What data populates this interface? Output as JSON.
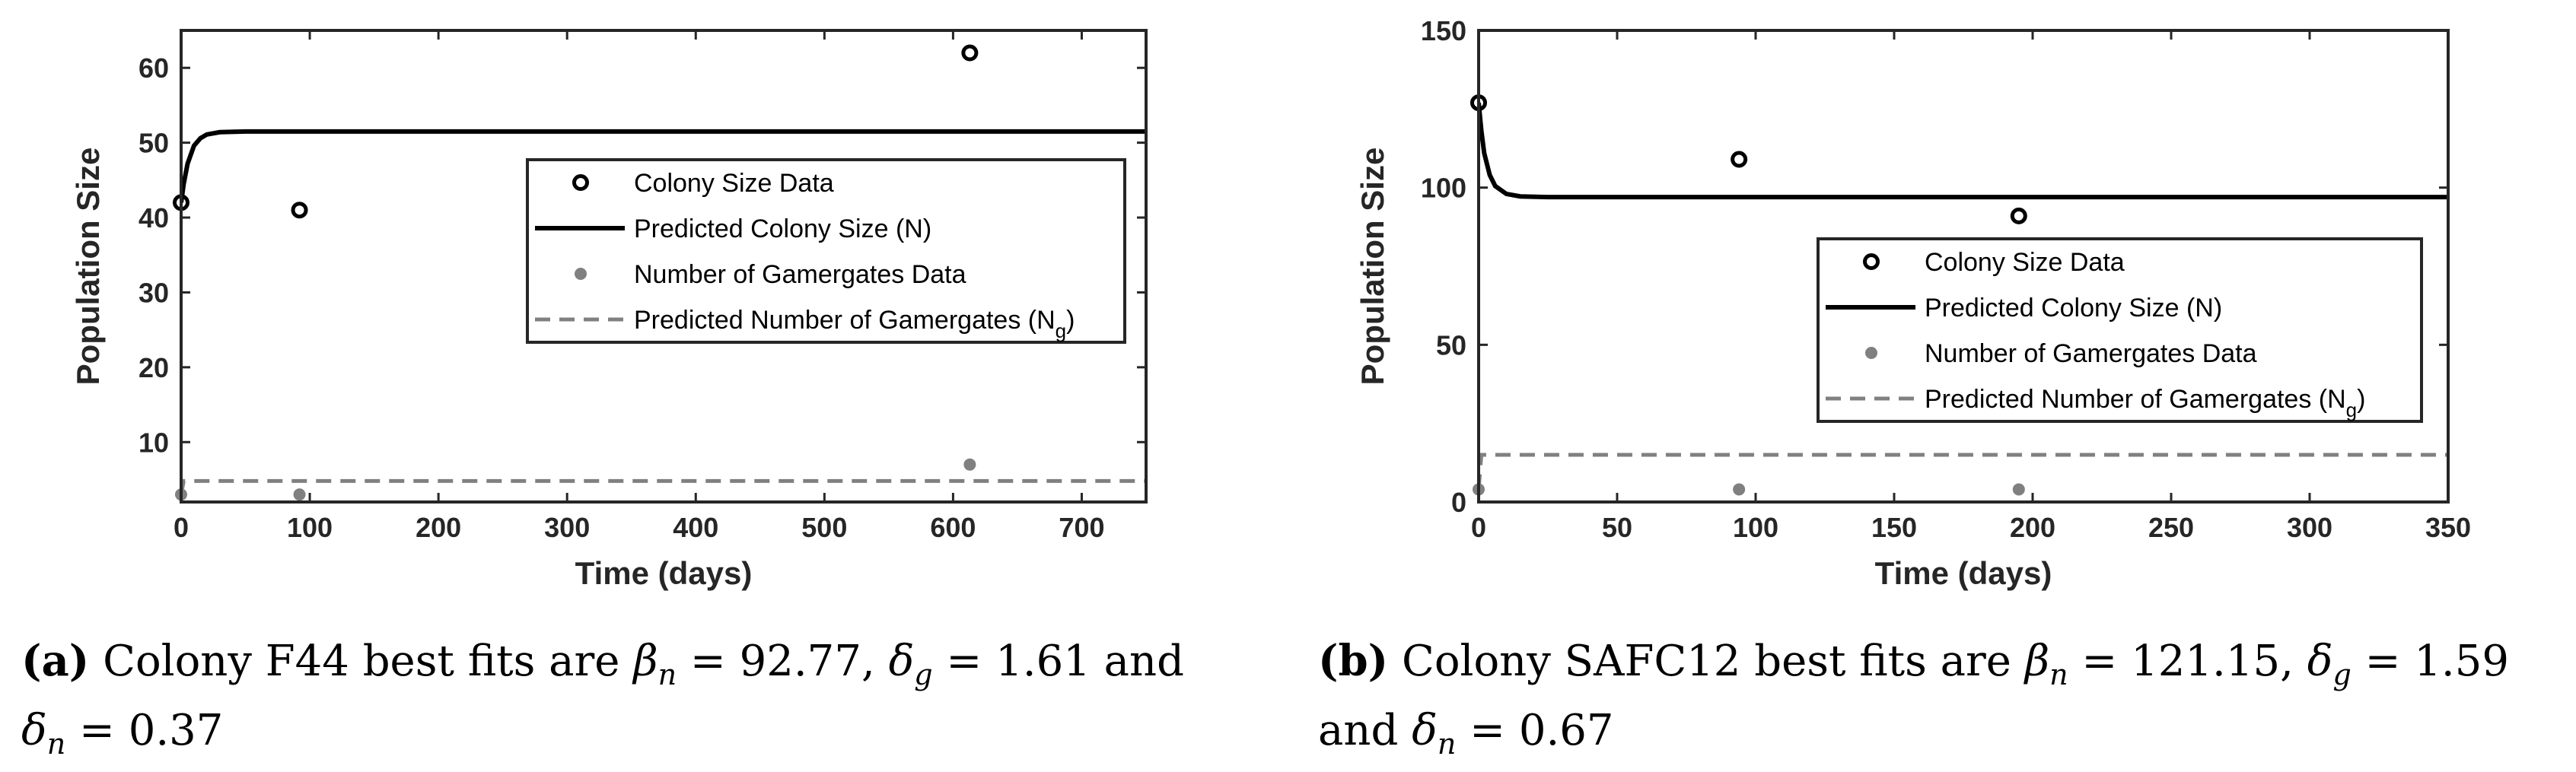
{
  "chart_data": [
    {
      "id": "a",
      "type": "line",
      "xlabel": "Time (days)",
      "ylabel": "Population Size",
      "xlim": [
        0,
        750
      ],
      "ylim": [
        2,
        65
      ],
      "xticks": [
        0,
        100,
        200,
        300,
        400,
        500,
        600,
        700
      ],
      "yticks": [
        10,
        20,
        30,
        40,
        50,
        60
      ],
      "legend_position": "center-right",
      "series": [
        {
          "name": "Colony Size Data",
          "kind": "scatter-open",
          "color": "#000000",
          "points": [
            [
              0,
              42
            ],
            [
              92,
              41
            ],
            [
              613,
              62
            ]
          ]
        },
        {
          "name": "Predicted Colony Size (N)",
          "kind": "line-solid",
          "color": "#000000",
          "points": [
            [
              0,
              42
            ],
            [
              2,
              44.5
            ],
            [
              5,
              47.2
            ],
            [
              10,
              49.6
            ],
            [
              15,
              50.6
            ],
            [
              20,
              51.1
            ],
            [
              30,
              51.4
            ],
            [
              50,
              51.5
            ],
            [
              750,
              51.5
            ]
          ]
        },
        {
          "name": "Number of Gamergates Data",
          "kind": "scatter-filled",
          "color": "#808080",
          "points": [
            [
              0,
              3
            ],
            [
              92,
              3
            ],
            [
              613,
              7
            ]
          ]
        },
        {
          "name": "Predicted Number of Gamergates (N_g)",
          "kind": "line-dashed",
          "color": "#808080",
          "points": [
            [
              0,
              3
            ],
            [
              2,
              4.8
            ],
            [
              750,
              4.8
            ]
          ]
        }
      ],
      "legend": [
        {
          "text": "Colony Size Data",
          "sub": ""
        },
        {
          "text": "Predicted Colony Size (N)",
          "sub": ""
        },
        {
          "text": "Number of Gamergates Data",
          "sub": ""
        },
        {
          "text": "Predicted Number of Gamergates (N",
          "sub": "g",
          "after": ")"
        }
      ]
    },
    {
      "id": "b",
      "type": "line",
      "xlabel": "Time (days)",
      "ylabel": "Population Size",
      "xlim": [
        0,
        350
      ],
      "ylim": [
        0,
        150
      ],
      "xticks": [
        0,
        50,
        100,
        150,
        200,
        250,
        300,
        350
      ],
      "yticks": [
        0,
        50,
        100,
        150
      ],
      "legend_position": "center-right",
      "series": [
        {
          "name": "Colony Size Data",
          "kind": "scatter-open",
          "color": "#000000",
          "points": [
            [
              0,
              127
            ],
            [
              94,
              109
            ],
            [
              195,
              91
            ]
          ]
        },
        {
          "name": "Predicted Colony Size (N)",
          "kind": "line-solid",
          "color": "#000000",
          "points": [
            [
              0,
              127
            ],
            [
              1,
              118
            ],
            [
              2,
              111
            ],
            [
              4,
              104
            ],
            [
              6,
              100.5
            ],
            [
              10,
              98
            ],
            [
              15,
              97.2
            ],
            [
              25,
              97
            ],
            [
              350,
              97
            ]
          ]
        },
        {
          "name": "Number of Gamergates Data",
          "kind": "scatter-filled",
          "color": "#808080",
          "points": [
            [
              0,
              4
            ],
            [
              94,
              4
            ],
            [
              195,
              4
            ]
          ]
        },
        {
          "name": "Predicted Number of Gamergates (N_g)",
          "kind": "line-dashed",
          "color": "#808080",
          "points": [
            [
              0,
              4
            ],
            [
              1,
              15
            ],
            [
              350,
              15
            ]
          ]
        }
      ],
      "legend": [
        {
          "text": "Colony Size Data",
          "sub": ""
        },
        {
          "text": "Predicted Colony Size (N)",
          "sub": ""
        },
        {
          "text": "Number of Gamergates Data",
          "sub": ""
        },
        {
          "text": "Predicted Number of Gamergates (N",
          "sub": "g",
          "after": ")"
        }
      ]
    }
  ],
  "captions": {
    "a": {
      "label": "(a)",
      "pre": "Colony F44 best fits are",
      "v1": "92.77,",
      "v2": "1.61 and",
      "v3": "0.37"
    },
    "b": {
      "label": "(b)",
      "pre": "Colony SAFC12 best fits are",
      "v1": "121.15,",
      "v2": "1.59",
      "and": "and",
      "v3": "0.67"
    }
  }
}
